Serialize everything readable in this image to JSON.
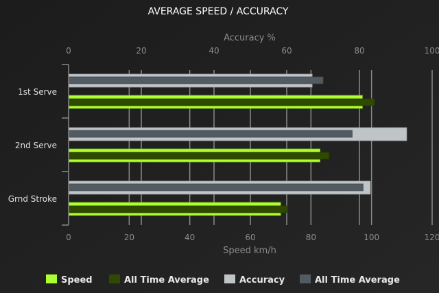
{
  "chart_data": {
    "type": "bar",
    "orientation": "horizontal",
    "title": "AVERAGE SPEED / ACCURACY",
    "categories": [
      "1st Serve",
      "2nd Serve",
      "Grnd Stroke"
    ],
    "top_axis": {
      "label": "Accuracy %",
      "range": [
        0,
        100
      ],
      "ticks": [
        0,
        20,
        40,
        60,
        80,
        100
      ]
    },
    "bottom_axis": {
      "label": "Speed km/h",
      "range": [
        0,
        120
      ],
      "ticks": [
        0,
        20,
        40,
        60,
        80,
        100,
        120
      ]
    },
    "grid": true,
    "legend_position": "bottom",
    "series": [
      {
        "name": "Speed",
        "axis": "bottom",
        "color": "#adff2f",
        "values": [
          97,
          83,
          70
        ]
      },
      {
        "name": "All Time Average",
        "axis": "bottom",
        "color": "#2f4a00",
        "values": [
          101,
          86,
          72
        ]
      },
      {
        "name": "Accuracy",
        "axis": "top",
        "color": "#bfc4c7",
        "values": [
          67,
          93,
          83
        ]
      },
      {
        "name": "All Time Average",
        "axis": "top",
        "color": "#525a62",
        "values": [
          70,
          78,
          81
        ]
      }
    ]
  },
  "colors": {
    "background": "#1f1f1f",
    "grid": "#8a8a8a",
    "axis_text": "#8c8c8c",
    "title_text": "#ffffff"
  }
}
